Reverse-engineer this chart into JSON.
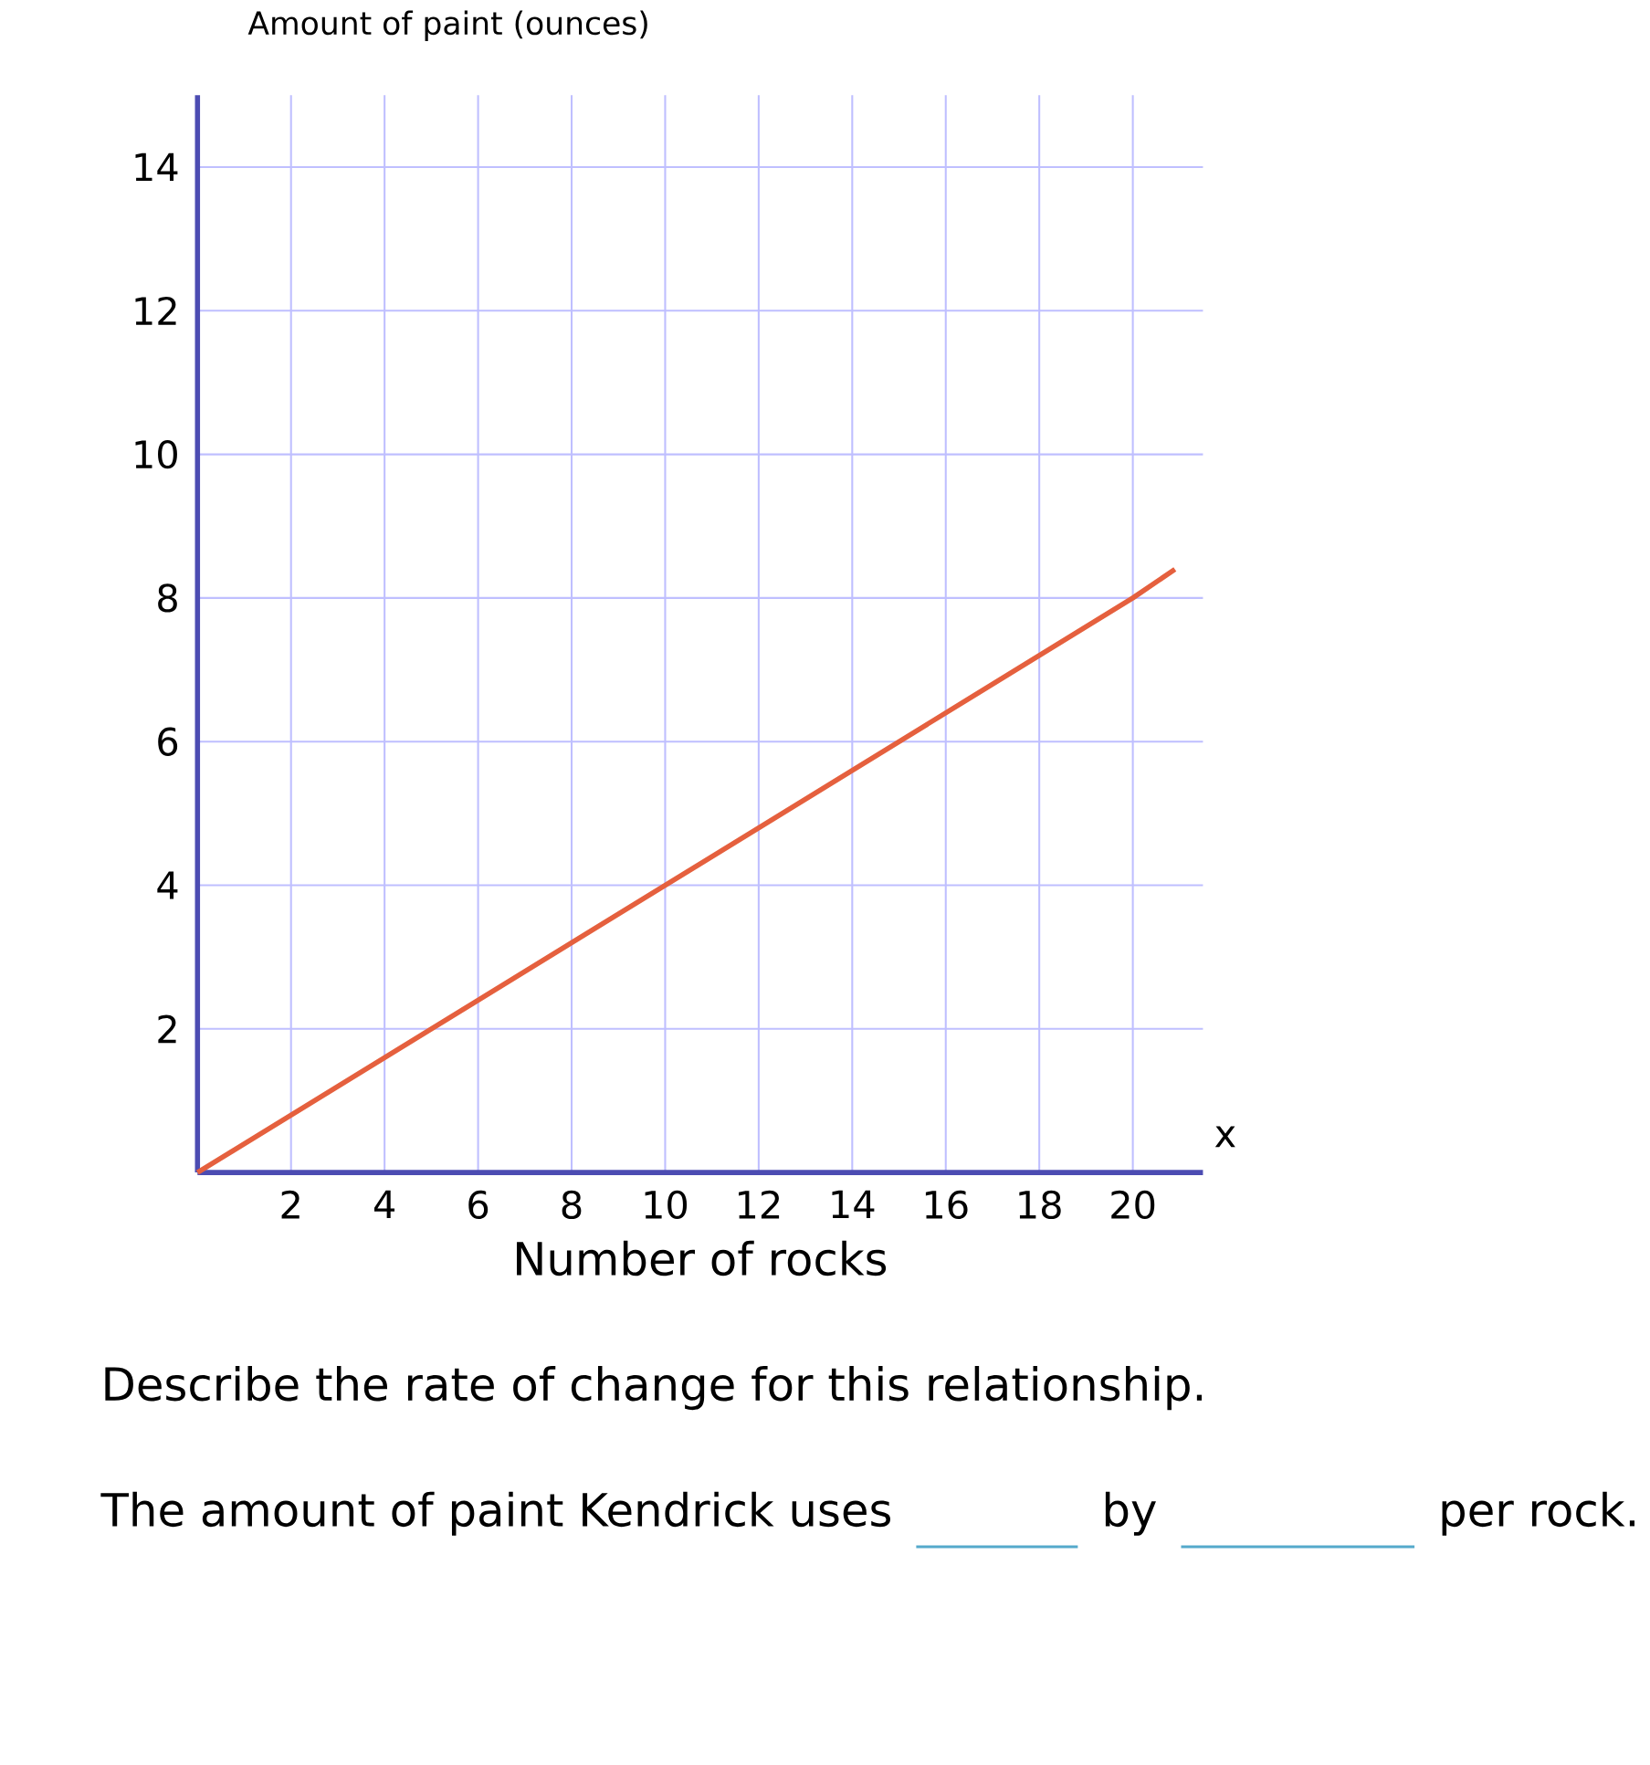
{
  "chart_data": {
    "type": "line",
    "xlabel": "Number of rocks",
    "ylabel": "Amount of paint (ounces)",
    "x": [
      0,
      20,
      20.9
    ],
    "series": [
      {
        "color": "#e5603e",
        "values": [
          0,
          8,
          8.4
        ]
      }
    ],
    "xlim": [
      0,
      21.5
    ],
    "ylim": [
      0,
      15
    ],
    "xticks": [
      2,
      4,
      6,
      8,
      10,
      12,
      14,
      16,
      18,
      20
    ],
    "yticks": [
      2,
      4,
      6,
      8,
      10,
      12,
      14
    ],
    "grid": true,
    "marker": "none",
    "line_style": "solid",
    "annotations": [
      "x",
      "Describe the rate of change for this relationship.",
      "The amount of paint Kendrick uses",
      "by",
      "per rock."
    ]
  }
}
